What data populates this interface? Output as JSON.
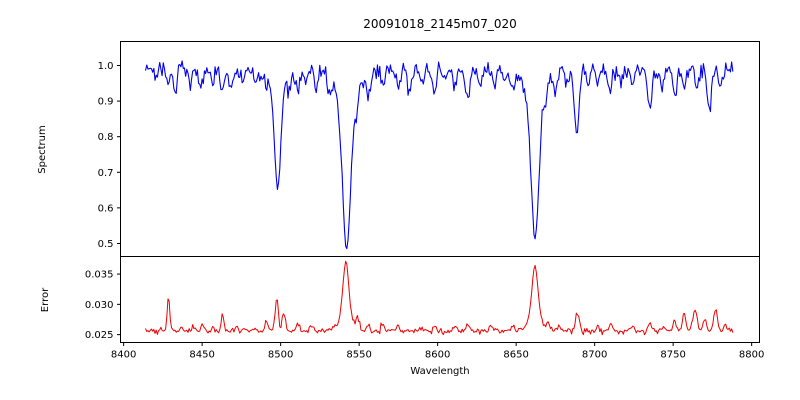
{
  "figure": {
    "background": "#ffffff",
    "spine_color": "#000000",
    "text_color": "#000000"
  },
  "chart_data": {
    "type": "line",
    "title": "20091018_2145m07_020",
    "xlabel": "Wavelength",
    "grid": false,
    "legend": "none",
    "xlim": [
      8398,
      8805
    ],
    "xticks": [
      8400,
      8450,
      8500,
      8550,
      8600,
      8650,
      8700,
      8750,
      8800
    ],
    "x_data_range": [
      8414,
      8788
    ],
    "n_points": 500,
    "panels": [
      {
        "name": "spectrum",
        "ylabel": "Spectrum",
        "color": "#0000ee",
        "line_width": 1.1,
        "ylim": [
          0.4634,
          1.0674
        ],
        "ytick_labels": [
          "1.0",
          "0.9",
          "0.8",
          "0.7",
          "0.6",
          "0.5"
        ],
        "ytick_values": [
          1.0,
          0.9,
          0.8,
          0.7,
          0.6,
          0.5
        ],
        "kind": "absorption",
        "continuum": 0.988,
        "noise_sigma": 0.0115,
        "seed": 20091018,
        "features_comment": "absorption lines as [center_wavelength, depth, sigma]; deep lines are Ca II triplet 8498/8542/8662 and Fe 8688",
        "features": [
          [
            8421,
            0.03,
            1.0
          ],
          [
            8428.5,
            0.05,
            0.9
          ],
          [
            8433,
            0.06,
            1.2
          ],
          [
            8442,
            0.04,
            1.0
          ],
          [
            8449,
            0.06,
            1.2
          ],
          [
            8457,
            0.04,
            1.0
          ],
          [
            8463,
            0.07,
            1.2
          ],
          [
            8468,
            0.05,
            1.0
          ],
          [
            8476,
            0.04,
            1.0
          ],
          [
            8484,
            0.04,
            1.0
          ],
          [
            8491,
            0.05,
            1.0
          ],
          [
            8498,
            0.31,
            2.1
          ],
          [
            8498,
            0.025,
            6.0
          ],
          [
            8505,
            0.04,
            1.0
          ],
          [
            8511,
            0.07,
            1.3
          ],
          [
            8516,
            0.04,
            1.0
          ],
          [
            8523,
            0.05,
            1.0
          ],
          [
            8531,
            0.04,
            1.0
          ],
          [
            8542,
            0.42,
            2.6
          ],
          [
            8542,
            0.08,
            7.0
          ],
          [
            8548,
            0.05,
            1.0
          ],
          [
            8556,
            0.06,
            1.2
          ],
          [
            8565,
            0.05,
            1.0
          ],
          [
            8575,
            0.05,
            1.0
          ],
          [
            8582,
            0.06,
            1.2
          ],
          [
            8590,
            0.04,
            1.0
          ],
          [
            8598,
            0.06,
            1.2
          ],
          [
            8605,
            0.04,
            1.0
          ],
          [
            8611,
            0.05,
            1.0
          ],
          [
            8619,
            0.07,
            1.3
          ],
          [
            8627,
            0.04,
            1.0
          ],
          [
            8636,
            0.05,
            1.0
          ],
          [
            8642,
            0.04,
            1.0
          ],
          [
            8648,
            0.06,
            1.2
          ],
          [
            8662,
            0.4,
            2.5
          ],
          [
            8662,
            0.07,
            6.5
          ],
          [
            8669,
            0.05,
            1.0
          ],
          [
            8675,
            0.05,
            1.0
          ],
          [
            8682,
            0.04,
            1.0
          ],
          [
            8688.6,
            0.175,
            1.6
          ],
          [
            8696,
            0.04,
            1.0
          ],
          [
            8702,
            0.05,
            1.0
          ],
          [
            8710,
            0.06,
            1.2
          ],
          [
            8717,
            0.04,
            1.0
          ],
          [
            8724,
            0.05,
            1.0
          ],
          [
            8735,
            0.11,
            1.4
          ],
          [
            8743,
            0.05,
            1.0
          ],
          [
            8751,
            0.08,
            1.2
          ],
          [
            8757,
            0.05,
            1.0
          ],
          [
            8765,
            0.06,
            1.0
          ],
          [
            8773,
            0.11,
            1.3
          ],
          [
            8780,
            0.05,
            1.0
          ]
        ]
      },
      {
        "name": "error",
        "ylabel": "Error",
        "color": "#ee0000",
        "line_width": 1.0,
        "ylim": [
          0.0237,
          0.0379
        ],
        "ytick_labels": [
          "0.035",
          "0.030",
          "0.025"
        ],
        "ytick_values": [
          0.035,
          0.03,
          0.025
        ],
        "kind": "emission",
        "baseline": 0.0256,
        "noise_sigma": 0.00022,
        "seed": 2145,
        "features_comment": "error spikes as [center_wavelength, amplitude, sigma]; largest at 8542 (~0.037) and 8662 (~0.036)",
        "features": [
          [
            8428.5,
            0.0057,
            0.8
          ],
          [
            8437,
            0.0008,
            0.8
          ],
          [
            8444,
            0.0007,
            0.8
          ],
          [
            8450,
            0.0012,
            0.8
          ],
          [
            8457,
            0.0008,
            0.8
          ],
          [
            8463,
            0.0028,
            0.9
          ],
          [
            8472,
            0.001,
            0.8
          ],
          [
            8484,
            0.0006,
            0.8
          ],
          [
            8491,
            0.0018,
            0.9
          ],
          [
            8497.5,
            0.0056,
            1.0
          ],
          [
            8502,
            0.003,
            1.0
          ],
          [
            8511,
            0.0012,
            1.0
          ],
          [
            8520,
            0.001,
            1.0
          ],
          [
            8541.5,
            0.0095,
            1.8
          ],
          [
            8541.5,
            0.002,
            5.0
          ],
          [
            8549,
            0.0015,
            1.2
          ],
          [
            8556,
            0.001,
            1.0
          ],
          [
            8565,
            0.0012,
            1.0
          ],
          [
            8575,
            0.001,
            1.0
          ],
          [
            8590,
            0.0006,
            1.0
          ],
          [
            8598,
            0.001,
            1.0
          ],
          [
            8611,
            0.0008,
            1.0
          ],
          [
            8619,
            0.001,
            1.0
          ],
          [
            8634,
            0.0008,
            1.0
          ],
          [
            8648,
            0.001,
            1.0
          ],
          [
            8662,
            0.009,
            1.9
          ],
          [
            8662,
            0.0018,
            5.0
          ],
          [
            8670,
            0.0012,
            1.0
          ],
          [
            8677,
            0.0008,
            1.0
          ],
          [
            8689,
            0.003,
            1.2
          ],
          [
            8702,
            0.0007,
            1.0
          ],
          [
            8710,
            0.001,
            1.0
          ],
          [
            8724,
            0.0008,
            1.0
          ],
          [
            8735,
            0.0012,
            1.0
          ],
          [
            8744,
            0.0008,
            1.0
          ],
          [
            8751,
            0.0018,
            1.0
          ],
          [
            8757,
            0.0028,
            1.1
          ],
          [
            8764,
            0.0035,
            1.4
          ],
          [
            8770,
            0.002,
            1.0
          ],
          [
            8777,
            0.0036,
            1.2
          ],
          [
            8783,
            0.0012,
            1.0
          ]
        ]
      }
    ]
  }
}
